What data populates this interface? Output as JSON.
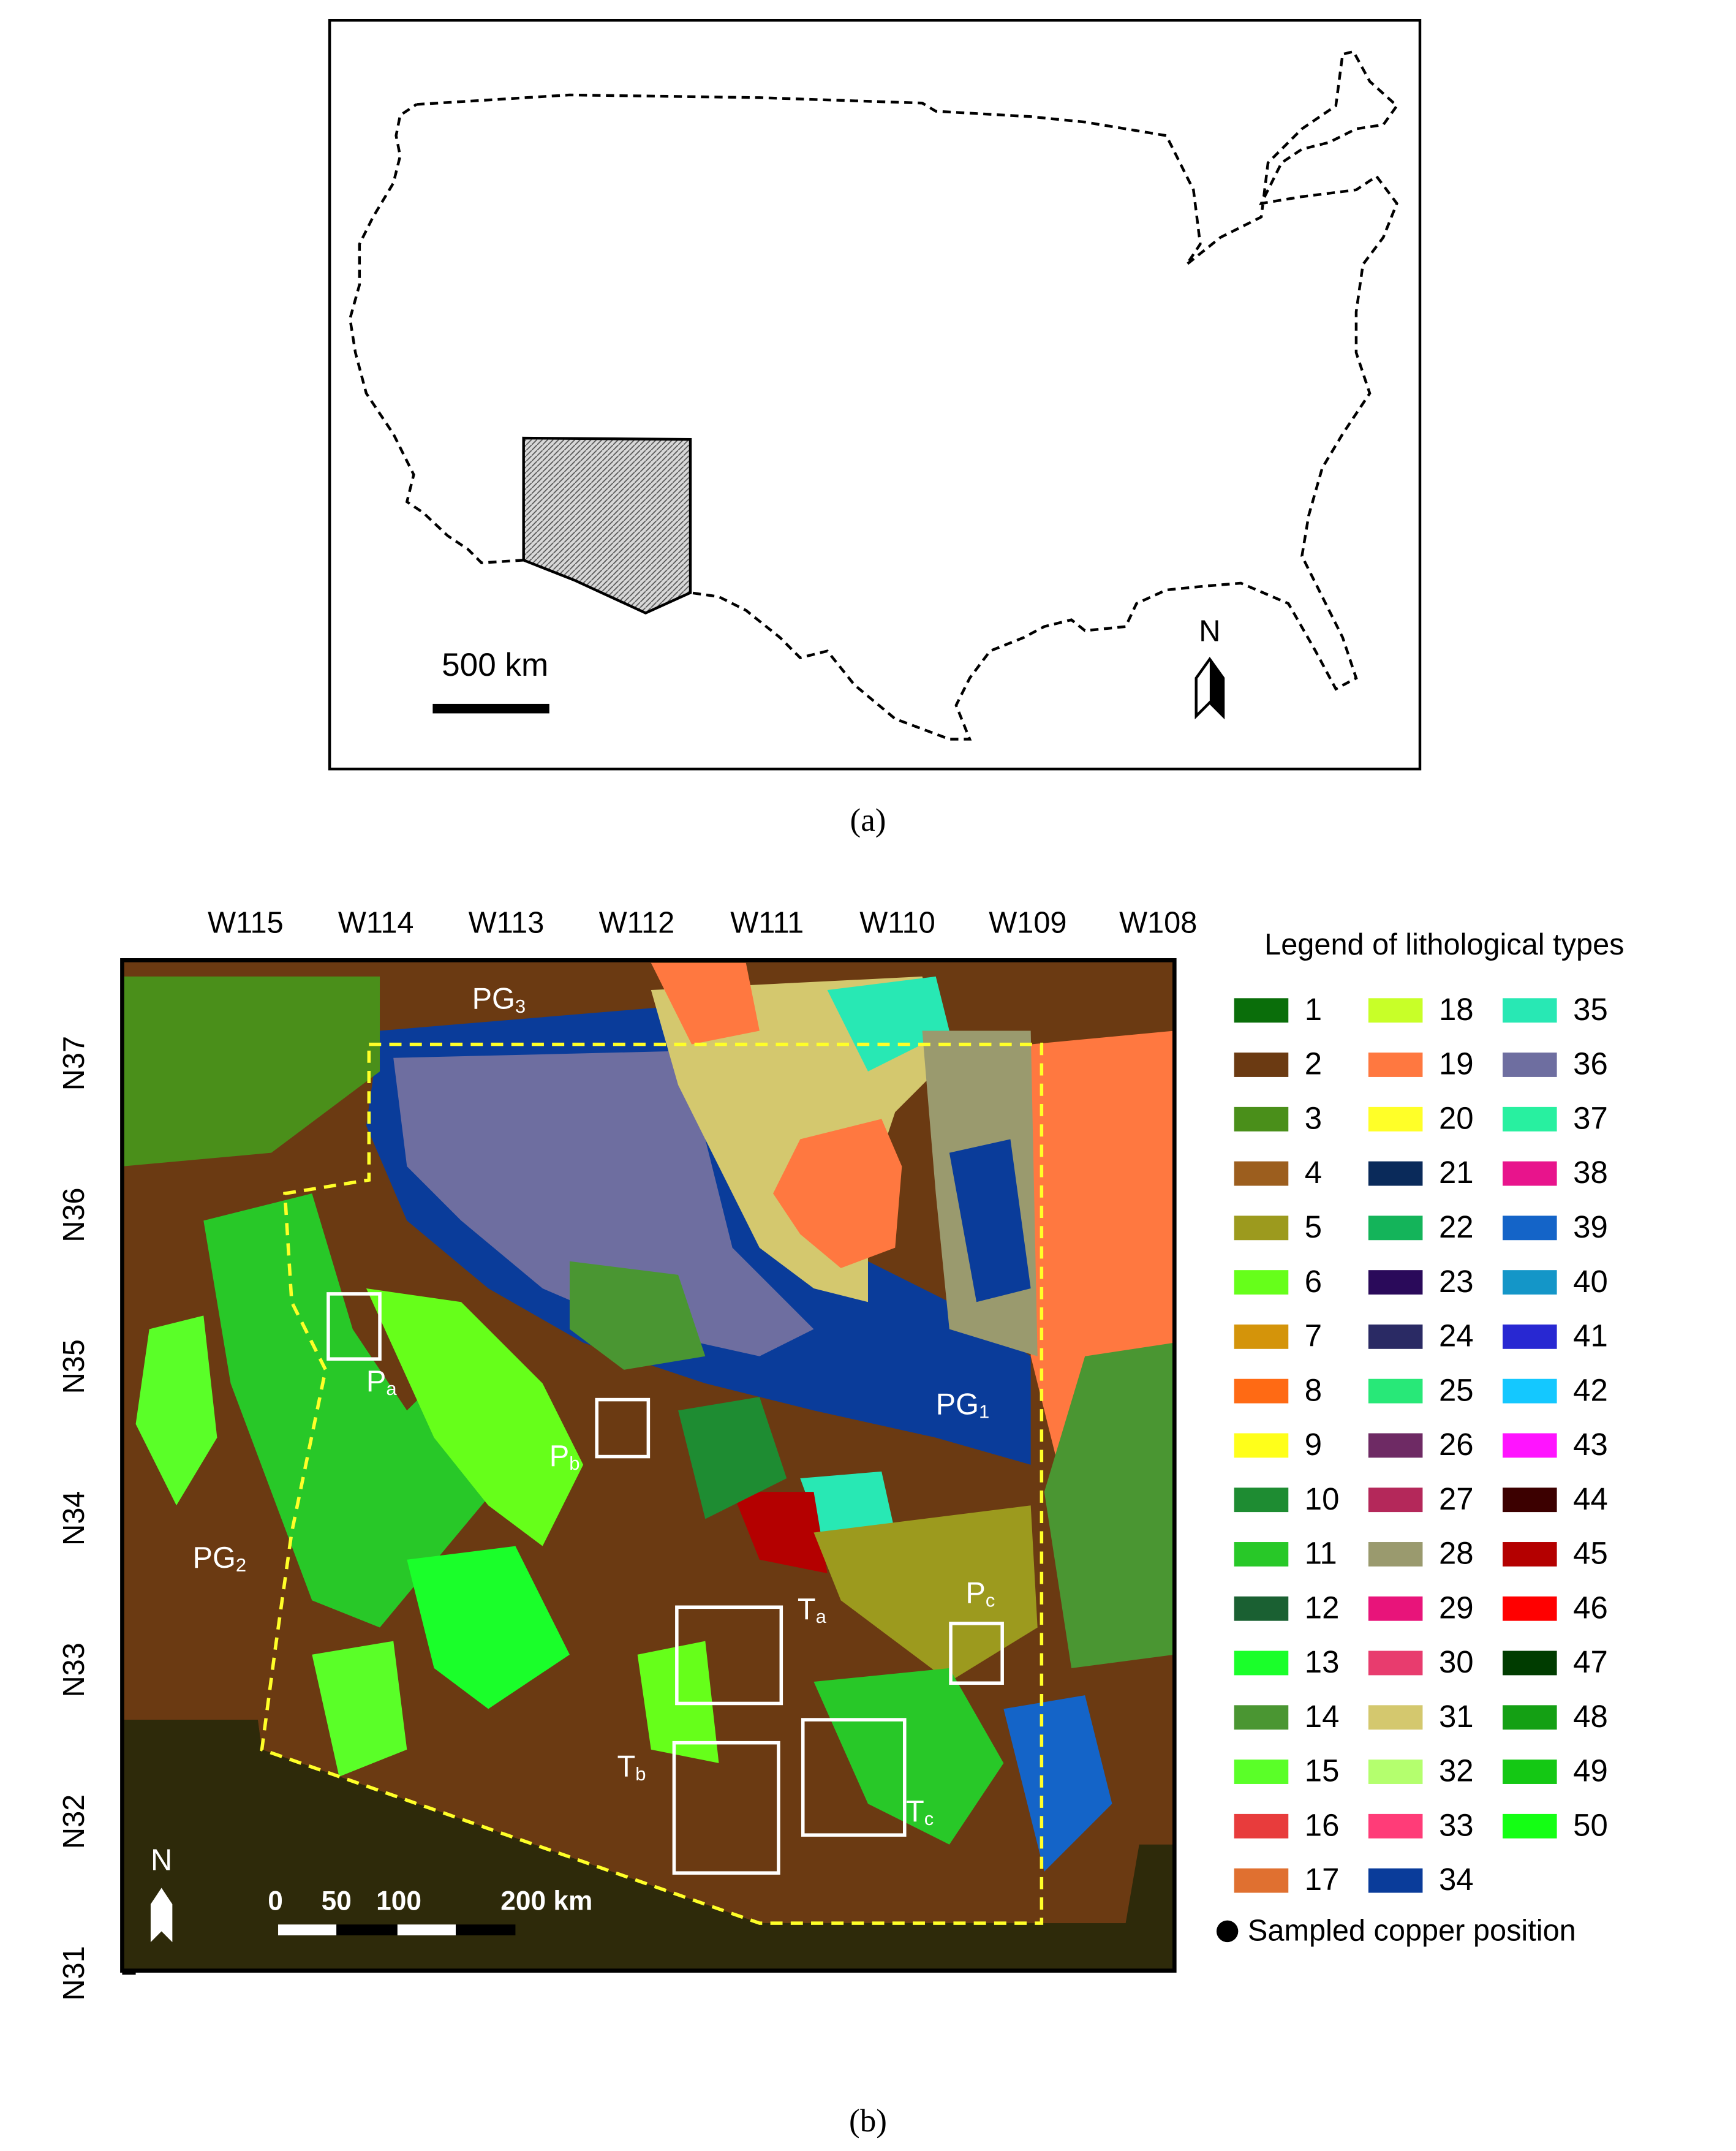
{
  "panel_a": {
    "scale_label": "500 km",
    "north": "N",
    "caption": "(a)"
  },
  "panel_b": {
    "lon_labels": [
      "W115",
      "W114",
      "W113",
      "W112",
      "W111",
      "W110",
      "W109",
      "W108"
    ],
    "lat_labels": [
      "N37",
      "N36",
      "N35",
      "N34",
      "N33",
      "N32",
      "N31"
    ],
    "regions": [
      {
        "text": "PG",
        "sub": "3"
      },
      {
        "text": "P",
        "sub": "a"
      },
      {
        "text": "P",
        "sub": "b"
      },
      {
        "text": "P",
        "sub": "c"
      },
      {
        "text": "T",
        "sub": "a"
      },
      {
        "text": "T",
        "sub": "b"
      },
      {
        "text": "T",
        "sub": "c"
      },
      {
        "text": "PG",
        "sub": "1"
      },
      {
        "text": "PG",
        "sub": "2"
      }
    ],
    "scale_labels": [
      "0",
      "50",
      "100",
      "200 km"
    ],
    "north": "N",
    "caption": "(b)"
  },
  "legend": {
    "title": "Legend of lithological types",
    "items": [
      {
        "label": "1",
        "color": "#0a6e0a"
      },
      {
        "label": "2",
        "color": "#6b3a12"
      },
      {
        "label": "3",
        "color": "#4a8f1a"
      },
      {
        "label": "4",
        "color": "#9c5e1e"
      },
      {
        "label": "5",
        "color": "#9c9a1e"
      },
      {
        "label": "6",
        "color": "#66ff1a"
      },
      {
        "label": "7",
        "color": "#d4940a"
      },
      {
        "label": "8",
        "color": "#ff6a14"
      },
      {
        "label": "9",
        "color": "#ffff1a"
      },
      {
        "label": "10",
        "color": "#1e8c32"
      },
      {
        "label": "11",
        "color": "#28c828"
      },
      {
        "label": "12",
        "color": "#1a6032"
      },
      {
        "label": "13",
        "color": "#1aff2a"
      },
      {
        "label": "14",
        "color": "#4a9632"
      },
      {
        "label": "15",
        "color": "#5aff28"
      },
      {
        "label": "16",
        "color": "#e83c3c"
      },
      {
        "label": "17",
        "color": "#e07030"
      },
      {
        "label": "18",
        "color": "#c8ff28"
      },
      {
        "label": "19",
        "color": "#ff7840"
      },
      {
        "label": "20",
        "color": "#ffff28"
      },
      {
        "label": "21",
        "color": "#0a2a5a"
      },
      {
        "label": "22",
        "color": "#14b45a"
      },
      {
        "label": "23",
        "color": "#2a0a5a"
      },
      {
        "label": "24",
        "color": "#2a2a64"
      },
      {
        "label": "25",
        "color": "#28e878"
      },
      {
        "label": "26",
        "color": "#6e2a64"
      },
      {
        "label": "27",
        "color": "#b4285a"
      },
      {
        "label": "28",
        "color": "#9a9a6e"
      },
      {
        "label": "29",
        "color": "#e8147a"
      },
      {
        "label": "30",
        "color": "#e83c6e"
      },
      {
        "label": "31",
        "color": "#d4c86e"
      },
      {
        "label": "32",
        "color": "#b4ff6e"
      },
      {
        "label": "33",
        "color": "#ff3c78"
      },
      {
        "label": "34",
        "color": "#0a3c9a"
      },
      {
        "label": "35",
        "color": "#28e8b4"
      },
      {
        "label": "36",
        "color": "#6e6ea0"
      },
      {
        "label": "37",
        "color": "#28f0a0"
      },
      {
        "label": "38",
        "color": "#e8148c"
      },
      {
        "label": "39",
        "color": "#1464c8"
      },
      {
        "label": "40",
        "color": "#1496c8"
      },
      {
        "label": "41",
        "color": "#2828d2"
      },
      {
        "label": "42",
        "color": "#14c8ff"
      },
      {
        "label": "43",
        "color": "#ff14ff"
      },
      {
        "label": "44",
        "color": "#3c0000"
      },
      {
        "label": "45",
        "color": "#b40000"
      },
      {
        "label": "46",
        "color": "#ff0000"
      },
      {
        "label": "47",
        "color": "#003c00"
      },
      {
        "label": "48",
        "color": "#14a014"
      },
      {
        "label": "49",
        "color": "#14c814"
      },
      {
        "label": "50",
        "color": "#14ff14"
      }
    ],
    "sampled": "Sampled copper position"
  }
}
